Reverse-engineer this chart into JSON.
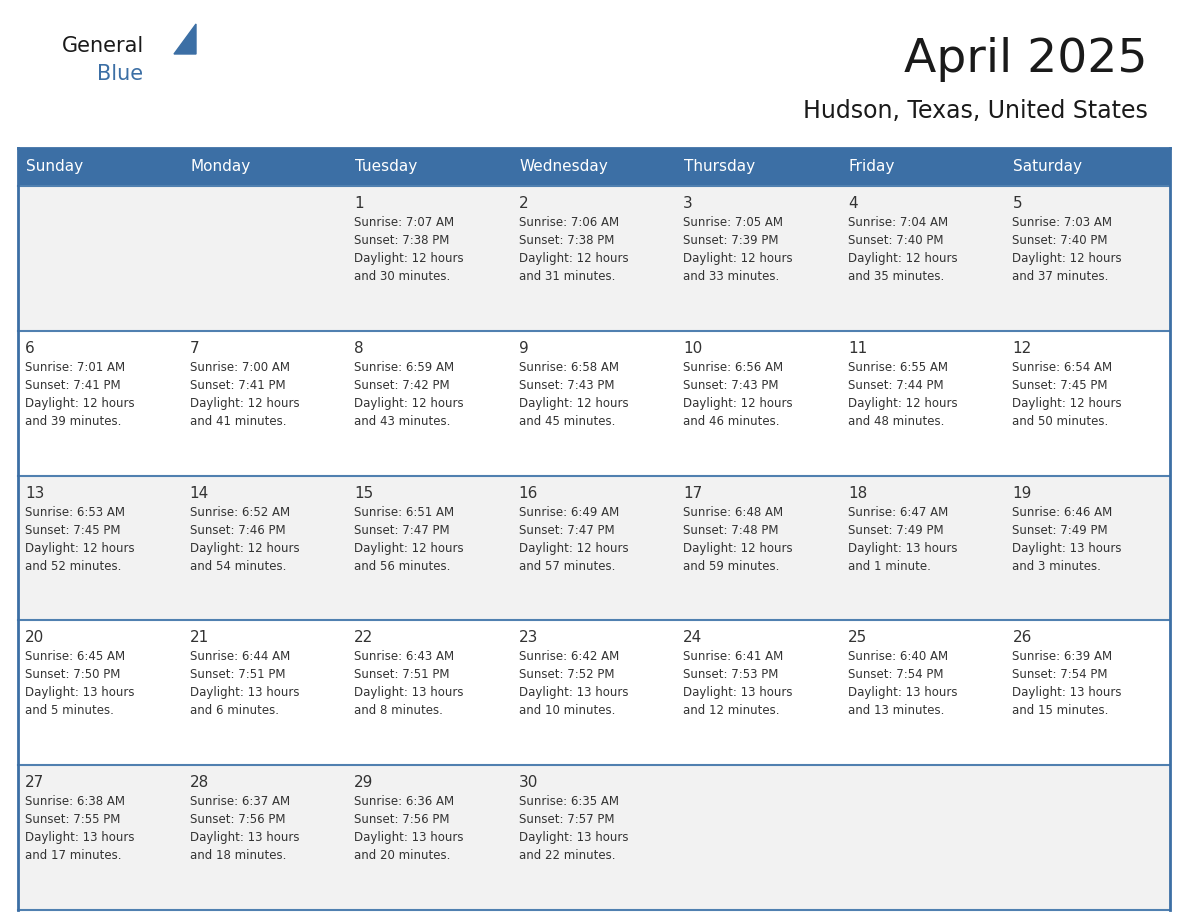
{
  "title": "April 2025",
  "subtitle": "Hudson, Texas, United States",
  "header_color": "#3C6FA5",
  "header_text_color": "#FFFFFF",
  "header_days": [
    "Sunday",
    "Monday",
    "Tuesday",
    "Wednesday",
    "Thursday",
    "Friday",
    "Saturday"
  ],
  "bg_color": "#FFFFFF",
  "cell_bg_light": "#F2F2F2",
  "cell_bg_white": "#FFFFFF",
  "border_color": "#3C6FA5",
  "row_line_color": "#5080B0",
  "text_color": "#333333",
  "logo_general_color": "#1a1a1a",
  "logo_blue_color": "#3C6FA5",
  "logo_triangle_color": "#3C6FA5",
  "weeks": [
    [
      {
        "day": "",
        "sunrise": "",
        "sunset": "",
        "daylight": ""
      },
      {
        "day": "",
        "sunrise": "",
        "sunset": "",
        "daylight": ""
      },
      {
        "day": "1",
        "sunrise": "Sunrise: 7:07 AM",
        "sunset": "Sunset: 7:38 PM",
        "daylight": "Daylight: 12 hours\nand 30 minutes."
      },
      {
        "day": "2",
        "sunrise": "Sunrise: 7:06 AM",
        "sunset": "Sunset: 7:38 PM",
        "daylight": "Daylight: 12 hours\nand 31 minutes."
      },
      {
        "day": "3",
        "sunrise": "Sunrise: 7:05 AM",
        "sunset": "Sunset: 7:39 PM",
        "daylight": "Daylight: 12 hours\nand 33 minutes."
      },
      {
        "day": "4",
        "sunrise": "Sunrise: 7:04 AM",
        "sunset": "Sunset: 7:40 PM",
        "daylight": "Daylight: 12 hours\nand 35 minutes."
      },
      {
        "day": "5",
        "sunrise": "Sunrise: 7:03 AM",
        "sunset": "Sunset: 7:40 PM",
        "daylight": "Daylight: 12 hours\nand 37 minutes."
      }
    ],
    [
      {
        "day": "6",
        "sunrise": "Sunrise: 7:01 AM",
        "sunset": "Sunset: 7:41 PM",
        "daylight": "Daylight: 12 hours\nand 39 minutes."
      },
      {
        "day": "7",
        "sunrise": "Sunrise: 7:00 AM",
        "sunset": "Sunset: 7:41 PM",
        "daylight": "Daylight: 12 hours\nand 41 minutes."
      },
      {
        "day": "8",
        "sunrise": "Sunrise: 6:59 AM",
        "sunset": "Sunset: 7:42 PM",
        "daylight": "Daylight: 12 hours\nand 43 minutes."
      },
      {
        "day": "9",
        "sunrise": "Sunrise: 6:58 AM",
        "sunset": "Sunset: 7:43 PM",
        "daylight": "Daylight: 12 hours\nand 45 minutes."
      },
      {
        "day": "10",
        "sunrise": "Sunrise: 6:56 AM",
        "sunset": "Sunset: 7:43 PM",
        "daylight": "Daylight: 12 hours\nand 46 minutes."
      },
      {
        "day": "11",
        "sunrise": "Sunrise: 6:55 AM",
        "sunset": "Sunset: 7:44 PM",
        "daylight": "Daylight: 12 hours\nand 48 minutes."
      },
      {
        "day": "12",
        "sunrise": "Sunrise: 6:54 AM",
        "sunset": "Sunset: 7:45 PM",
        "daylight": "Daylight: 12 hours\nand 50 minutes."
      }
    ],
    [
      {
        "day": "13",
        "sunrise": "Sunrise: 6:53 AM",
        "sunset": "Sunset: 7:45 PM",
        "daylight": "Daylight: 12 hours\nand 52 minutes."
      },
      {
        "day": "14",
        "sunrise": "Sunrise: 6:52 AM",
        "sunset": "Sunset: 7:46 PM",
        "daylight": "Daylight: 12 hours\nand 54 minutes."
      },
      {
        "day": "15",
        "sunrise": "Sunrise: 6:51 AM",
        "sunset": "Sunset: 7:47 PM",
        "daylight": "Daylight: 12 hours\nand 56 minutes."
      },
      {
        "day": "16",
        "sunrise": "Sunrise: 6:49 AM",
        "sunset": "Sunset: 7:47 PM",
        "daylight": "Daylight: 12 hours\nand 57 minutes."
      },
      {
        "day": "17",
        "sunrise": "Sunrise: 6:48 AM",
        "sunset": "Sunset: 7:48 PM",
        "daylight": "Daylight: 12 hours\nand 59 minutes."
      },
      {
        "day": "18",
        "sunrise": "Sunrise: 6:47 AM",
        "sunset": "Sunset: 7:49 PM",
        "daylight": "Daylight: 13 hours\nand 1 minute."
      },
      {
        "day": "19",
        "sunrise": "Sunrise: 6:46 AM",
        "sunset": "Sunset: 7:49 PM",
        "daylight": "Daylight: 13 hours\nand 3 minutes."
      }
    ],
    [
      {
        "day": "20",
        "sunrise": "Sunrise: 6:45 AM",
        "sunset": "Sunset: 7:50 PM",
        "daylight": "Daylight: 13 hours\nand 5 minutes."
      },
      {
        "day": "21",
        "sunrise": "Sunrise: 6:44 AM",
        "sunset": "Sunset: 7:51 PM",
        "daylight": "Daylight: 13 hours\nand 6 minutes."
      },
      {
        "day": "22",
        "sunrise": "Sunrise: 6:43 AM",
        "sunset": "Sunset: 7:51 PM",
        "daylight": "Daylight: 13 hours\nand 8 minutes."
      },
      {
        "day": "23",
        "sunrise": "Sunrise: 6:42 AM",
        "sunset": "Sunset: 7:52 PM",
        "daylight": "Daylight: 13 hours\nand 10 minutes."
      },
      {
        "day": "24",
        "sunrise": "Sunrise: 6:41 AM",
        "sunset": "Sunset: 7:53 PM",
        "daylight": "Daylight: 13 hours\nand 12 minutes."
      },
      {
        "day": "25",
        "sunrise": "Sunrise: 6:40 AM",
        "sunset": "Sunset: 7:54 PM",
        "daylight": "Daylight: 13 hours\nand 13 minutes."
      },
      {
        "day": "26",
        "sunrise": "Sunrise: 6:39 AM",
        "sunset": "Sunset: 7:54 PM",
        "daylight": "Daylight: 13 hours\nand 15 minutes."
      }
    ],
    [
      {
        "day": "27",
        "sunrise": "Sunrise: 6:38 AM",
        "sunset": "Sunset: 7:55 PM",
        "daylight": "Daylight: 13 hours\nand 17 minutes."
      },
      {
        "day": "28",
        "sunrise": "Sunrise: 6:37 AM",
        "sunset": "Sunset: 7:56 PM",
        "daylight": "Daylight: 13 hours\nand 18 minutes."
      },
      {
        "day": "29",
        "sunrise": "Sunrise: 6:36 AM",
        "sunset": "Sunset: 7:56 PM",
        "daylight": "Daylight: 13 hours\nand 20 minutes."
      },
      {
        "day": "30",
        "sunrise": "Sunrise: 6:35 AM",
        "sunset": "Sunset: 7:57 PM",
        "daylight": "Daylight: 13 hours\nand 22 minutes."
      },
      {
        "day": "",
        "sunrise": "",
        "sunset": "",
        "daylight": ""
      },
      {
        "day": "",
        "sunrise": "",
        "sunset": "",
        "daylight": ""
      },
      {
        "day": "",
        "sunrise": "",
        "sunset": "",
        "daylight": ""
      }
    ]
  ]
}
